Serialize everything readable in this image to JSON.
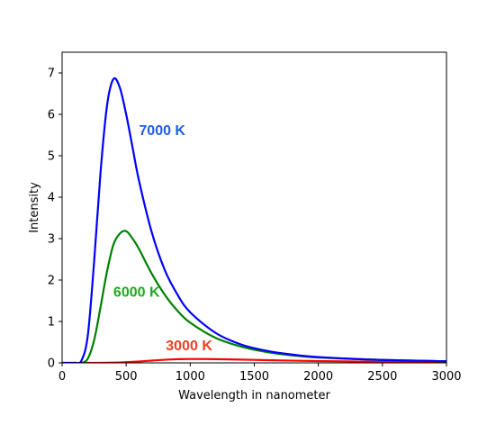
{
  "chart_data": {
    "type": "line",
    "title": "",
    "xlabel": "Wavelength in nanometer",
    "ylabel": "Intensity",
    "xlim": [
      0,
      3000
    ],
    "ylim": [
      0,
      7.5
    ],
    "x_ticks": [
      0,
      500,
      1000,
      1500,
      2000,
      2500,
      3000
    ],
    "y_ticks": [
      0,
      1,
      2,
      3,
      4,
      5,
      6,
      7
    ],
    "grid": false,
    "legend": "none",
    "x": [
      0,
      100,
      150,
      200,
      250,
      300,
      350,
      400,
      450,
      500,
      550,
      600,
      700,
      800,
      900,
      1000,
      1200,
      1400,
      1600,
      1800,
      2000,
      2500,
      3000
    ],
    "series": [
      {
        "color": "#0000ff",
        "values": [
          0,
          0.0,
          0.05,
          0.65,
          2.45,
          4.6,
          6.2,
          6.85,
          6.65,
          6.0,
          5.2,
          4.4,
          3.15,
          2.25,
          1.65,
          1.22,
          0.72,
          0.44,
          0.29,
          0.2,
          0.14,
          0.07,
          0.04
        ]
      },
      {
        "color": "#008000",
        "values": [
          0,
          0.0,
          0.0,
          0.1,
          0.55,
          1.35,
          2.2,
          2.85,
          3.12,
          3.18,
          3.0,
          2.75,
          2.15,
          1.65,
          1.26,
          0.97,
          0.6,
          0.39,
          0.26,
          0.18,
          0.13,
          0.07,
          0.04
        ]
      },
      {
        "color": "#ff0000",
        "values": [
          0,
          0.0,
          0.0,
          0.0,
          0.0,
          0.0,
          0.002,
          0.005,
          0.01,
          0.016,
          0.024,
          0.034,
          0.055,
          0.075,
          0.088,
          0.094,
          0.09,
          0.078,
          0.065,
          0.053,
          0.044,
          0.026,
          0.016
        ]
      }
    ],
    "annotations": [
      {
        "text": "7000 K",
        "x": 600,
        "y": 5.5,
        "color": "#1f5fe0"
      },
      {
        "text": "6000 K",
        "x": 400,
        "y": 1.6,
        "color": "#1faa1f"
      },
      {
        "text": "3000 K",
        "x": 810,
        "y": 0.3,
        "color": "#f04020"
      }
    ]
  }
}
